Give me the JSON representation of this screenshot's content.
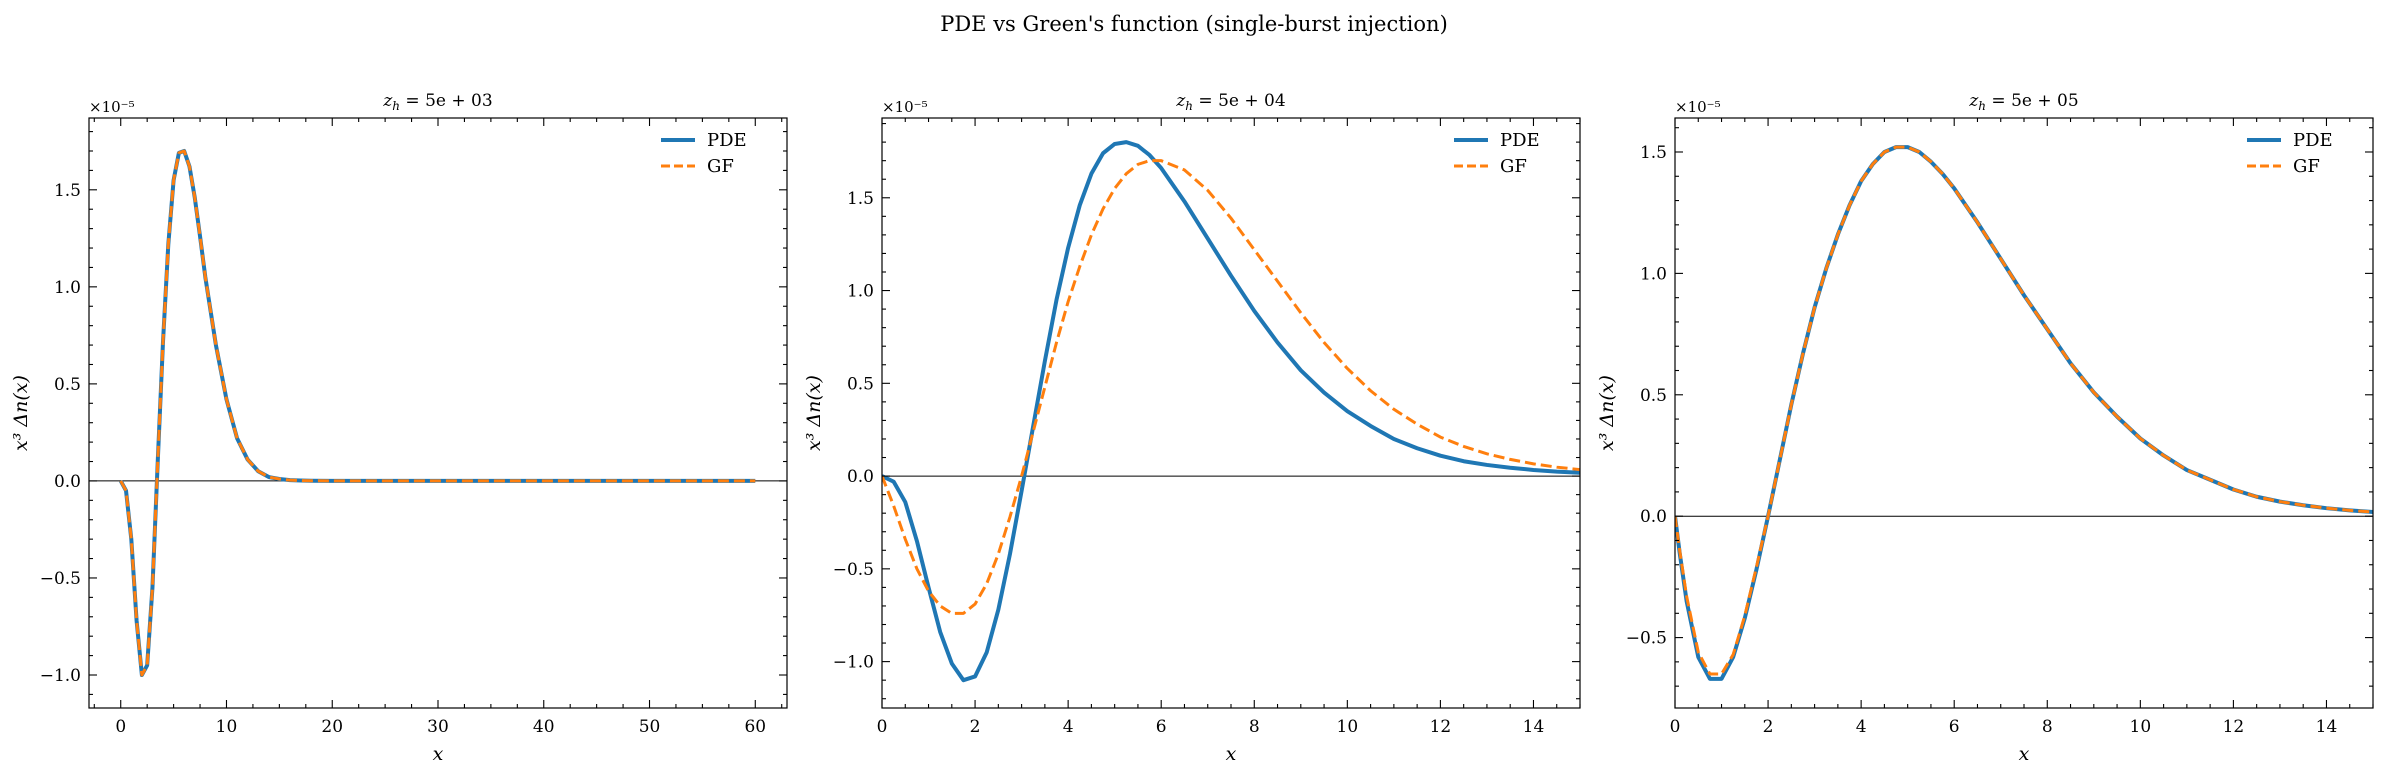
{
  "figure": {
    "suptitle": "PDE vs Green's function (single-burst injection)",
    "colors": {
      "pde": "#1f77b4",
      "gf": "#ff7f0e"
    }
  },
  "chart_data": [
    {
      "type": "line",
      "title": "z_h = 5e+03",
      "title_main": "z",
      "title_sub": "h",
      "title_rest": " = 5e + 03",
      "xlabel": "x",
      "ylabel": "x³ Δn(x)",
      "offset_text": "×10⁻⁵",
      "xlim": [
        -3,
        63
      ],
      "ylim": [
        -1.17,
        1.87
      ],
      "xticks": [
        0,
        10,
        20,
        30,
        40,
        50,
        60
      ],
      "xtick_labels": [
        "0",
        "10",
        "20",
        "30",
        "40",
        "50",
        "60"
      ],
      "yticks": [
        -1.0,
        -0.5,
        0.0,
        0.5,
        1.0,
        1.5
      ],
      "ytick_labels": [
        "−1.0",
        "−0.5",
        "0.0",
        "0.5",
        "1.0",
        "1.5"
      ],
      "legend": "top-right",
      "series": [
        {
          "name": "PDE",
          "style": "solid",
          "x": [
            0,
            0.5,
            1,
            1.5,
            2,
            2.5,
            3,
            3.5,
            4,
            4.5,
            5,
            5.5,
            6,
            6.5,
            7,
            7.5,
            8,
            9,
            10,
            11,
            12,
            13,
            14,
            15,
            16,
            17,
            18,
            20,
            25,
            30,
            40,
            50,
            60
          ],
          "y": [
            0,
            -0.05,
            -0.3,
            -0.72,
            -1.0,
            -0.95,
            -0.55,
            0.1,
            0.72,
            1.22,
            1.55,
            1.69,
            1.7,
            1.62,
            1.46,
            1.26,
            1.05,
            0.7,
            0.42,
            0.22,
            0.11,
            0.05,
            0.02,
            0.01,
            0.004,
            0.002,
            0.001,
            0,
            0,
            0,
            0,
            0,
            0
          ]
        },
        {
          "name": "GF",
          "style": "dashed",
          "x": [
            0,
            0.5,
            1,
            1.5,
            2,
            2.5,
            3,
            3.5,
            4,
            4.5,
            5,
            5.5,
            6,
            6.5,
            7,
            7.5,
            8,
            9,
            10,
            11,
            12,
            13,
            14,
            15,
            16,
            17,
            18,
            20,
            25,
            30,
            40,
            50,
            60
          ],
          "y": [
            0,
            -0.05,
            -0.3,
            -0.72,
            -1.0,
            -0.95,
            -0.55,
            0.1,
            0.72,
            1.22,
            1.55,
            1.69,
            1.7,
            1.62,
            1.46,
            1.26,
            1.05,
            0.7,
            0.42,
            0.22,
            0.11,
            0.05,
            0.02,
            0.01,
            0.004,
            0.002,
            0.001,
            0,
            0,
            0,
            0,
            0,
            0
          ]
        }
      ]
    },
    {
      "type": "line",
      "title": "z_h = 5e+04",
      "title_main": "z",
      "title_sub": "h",
      "title_rest": " = 5e + 04",
      "xlabel": "x",
      "ylabel": "x³ Δn(x)",
      "offset_text": "×10⁻⁵",
      "xlim": [
        0,
        15
      ],
      "ylim": [
        -1.25,
        1.93
      ],
      "xticks": [
        0,
        2,
        4,
        6,
        8,
        10,
        12,
        14
      ],
      "xtick_labels": [
        "0",
        "2",
        "4",
        "6",
        "8",
        "10",
        "12",
        "14"
      ],
      "yticks": [
        -1.0,
        -0.5,
        0.0,
        0.5,
        1.0,
        1.5
      ],
      "ytick_labels": [
        "−1.0",
        "−0.5",
        "0.0",
        "0.5",
        "1.0",
        "1.5"
      ],
      "legend": "top-right",
      "series": [
        {
          "name": "PDE",
          "style": "solid",
          "x": [
            0,
            0.25,
            0.5,
            0.75,
            1,
            1.25,
            1.5,
            1.75,
            2,
            2.25,
            2.5,
            2.75,
            3,
            3.25,
            3.5,
            3.75,
            4,
            4.25,
            4.5,
            4.75,
            5,
            5.25,
            5.5,
            5.75,
            6,
            6.5,
            7,
            7.5,
            8,
            8.5,
            9,
            9.5,
            10,
            10.5,
            11,
            11.5,
            12,
            12.5,
            13,
            13.5,
            14,
            14.5,
            15
          ],
          "y": [
            0,
            -0.03,
            -0.14,
            -0.35,
            -0.6,
            -0.84,
            -1.01,
            -1.1,
            -1.08,
            -0.95,
            -0.72,
            -0.42,
            -0.08,
            0.27,
            0.62,
            0.95,
            1.23,
            1.46,
            1.63,
            1.74,
            1.79,
            1.8,
            1.78,
            1.73,
            1.66,
            1.48,
            1.28,
            1.08,
            0.89,
            0.72,
            0.57,
            0.45,
            0.35,
            0.27,
            0.2,
            0.15,
            0.11,
            0.08,
            0.06,
            0.045,
            0.033,
            0.024,
            0.018
          ]
        },
        {
          "name": "GF",
          "style": "dashed",
          "x": [
            0,
            0.25,
            0.5,
            0.75,
            1,
            1.25,
            1.5,
            1.75,
            2,
            2.25,
            2.5,
            2.75,
            3,
            3.25,
            3.5,
            3.75,
            4,
            4.25,
            4.5,
            4.75,
            5,
            5.25,
            5.5,
            5.75,
            6,
            6.5,
            7,
            7.5,
            8,
            8.5,
            9,
            9.5,
            10,
            10.5,
            11,
            11.5,
            12,
            12.5,
            13,
            13.5,
            14,
            14.5,
            15
          ],
          "y": [
            0,
            -0.16,
            -0.34,
            -0.5,
            -0.62,
            -0.7,
            -0.74,
            -0.74,
            -0.69,
            -0.58,
            -0.42,
            -0.22,
            0.0,
            0.24,
            0.48,
            0.72,
            0.94,
            1.13,
            1.3,
            1.44,
            1.55,
            1.63,
            1.68,
            1.7,
            1.7,
            1.65,
            1.54,
            1.39,
            1.22,
            1.05,
            0.88,
            0.72,
            0.58,
            0.46,
            0.36,
            0.28,
            0.21,
            0.16,
            0.12,
            0.09,
            0.066,
            0.048,
            0.035
          ]
        }
      ]
    },
    {
      "type": "line",
      "title": "z_h = 5e+05",
      "title_main": "z",
      "title_sub": "h",
      "title_rest": " = 5e + 05",
      "xlabel": "x",
      "ylabel": "x³ Δn(x)",
      "offset_text": "×10⁻⁵",
      "xlim": [
        0,
        15
      ],
      "ylim": [
        -0.79,
        1.64
      ],
      "xticks": [
        0,
        2,
        4,
        6,
        8,
        10,
        12,
        14
      ],
      "xtick_labels": [
        "0",
        "2",
        "4",
        "6",
        "8",
        "10",
        "12",
        "14"
      ],
      "yticks": [
        -0.5,
        0.0,
        0.5,
        1.0,
        1.5
      ],
      "ytick_labels": [
        "−0.5",
        "0.0",
        "0.5",
        "1.0",
        "1.5"
      ],
      "legend": "top-right",
      "series": [
        {
          "name": "PDE",
          "style": "solid",
          "x": [
            0,
            0.1,
            0.25,
            0.5,
            0.75,
            1,
            1.25,
            1.5,
            1.75,
            2,
            2.25,
            2.5,
            2.75,
            3,
            3.25,
            3.5,
            3.75,
            4,
            4.25,
            4.5,
            4.75,
            5,
            5.25,
            5.5,
            5.75,
            6,
            6.5,
            7,
            7.5,
            8,
            8.5,
            9,
            9.5,
            10,
            10.5,
            11,
            11.5,
            12,
            12.5,
            13,
            13.5,
            14,
            14.5,
            15
          ],
          "y": [
            0,
            -0.15,
            -0.35,
            -0.58,
            -0.67,
            -0.67,
            -0.58,
            -0.42,
            -0.22,
            0.0,
            0.23,
            0.46,
            0.67,
            0.86,
            1.02,
            1.16,
            1.28,
            1.38,
            1.45,
            1.5,
            1.52,
            1.52,
            1.5,
            1.46,
            1.41,
            1.35,
            1.21,
            1.06,
            0.91,
            0.77,
            0.63,
            0.51,
            0.41,
            0.32,
            0.25,
            0.19,
            0.15,
            0.11,
            0.08,
            0.06,
            0.045,
            0.033,
            0.024,
            0.017
          ]
        },
        {
          "name": "GF",
          "style": "dashed",
          "x": [
            0,
            0.1,
            0.25,
            0.5,
            0.75,
            1,
            1.25,
            1.5,
            1.75,
            2,
            2.25,
            2.5,
            2.75,
            3,
            3.25,
            3.5,
            3.75,
            4,
            4.25,
            4.5,
            4.75,
            5,
            5.25,
            5.5,
            5.75,
            6,
            6.5,
            7,
            7.5,
            8,
            8.5,
            9,
            9.5,
            10,
            10.5,
            11,
            11.5,
            12,
            12.5,
            13,
            13.5,
            14,
            14.5,
            15
          ],
          "y": [
            0,
            -0.14,
            -0.33,
            -0.56,
            -0.65,
            -0.65,
            -0.57,
            -0.41,
            -0.21,
            0.0,
            0.23,
            0.46,
            0.67,
            0.86,
            1.02,
            1.16,
            1.28,
            1.38,
            1.45,
            1.5,
            1.52,
            1.52,
            1.5,
            1.46,
            1.41,
            1.35,
            1.21,
            1.06,
            0.91,
            0.77,
            0.63,
            0.51,
            0.41,
            0.32,
            0.25,
            0.19,
            0.15,
            0.11,
            0.08,
            0.06,
            0.045,
            0.033,
            0.024,
            0.017
          ]
        }
      ]
    }
  ]
}
